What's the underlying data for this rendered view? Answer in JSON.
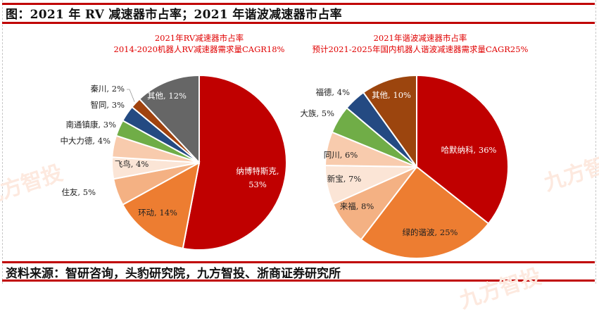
{
  "figure_title": "图：2021 年 RV 减速器市占率；2021 年谐波减速器市占率",
  "source": "资料来源：智研咨询，头豹研究院，九方智投、浙商证券研究所",
  "watermark": "九方智投",
  "chart_data": [
    {
      "type": "pie",
      "title": "2021年RV减速器市占率",
      "subtitle": "2014-2020机器人RV减速器需求量CAGR18%",
      "unit": "%",
      "start": "12 o'clock",
      "direction": "clockwise",
      "slices": [
        {
          "name": "纳博特斯克",
          "value": 53,
          "label": "纳博特斯克,",
          "label2": "53%",
          "color": "#c00000",
          "textColor": "#ffffff"
        },
        {
          "name": "环动",
          "value": 14,
          "label": "环动, 14%",
          "color": "#ed7d31",
          "textColor": "#222222"
        },
        {
          "name": "住友",
          "value": 5,
          "label": "住友, 5%",
          "color": "#f4b183",
          "textColor": "#222222"
        },
        {
          "name": "飞鸟",
          "value": 4,
          "label": "飞鸟, 4%",
          "color": "#fbe5d6",
          "textColor": "#222222"
        },
        {
          "name": "中大力德",
          "value": 4,
          "label": "中大力德, 4%",
          "color": "#f8cbad",
          "textColor": "#222222"
        },
        {
          "name": "南通镇康",
          "value": 3,
          "label": "南通镇康, 3%",
          "color": "#70ad47",
          "textColor": "#222222"
        },
        {
          "name": "智同",
          "value": 3,
          "label": "智同, 3%",
          "color": "#244a82",
          "textColor": "#222222"
        },
        {
          "name": "秦川",
          "value": 2,
          "label": "秦川, 2%",
          "color": "#a0430f",
          "textColor": "#222222"
        },
        {
          "name": "其他",
          "value": 12,
          "label": "其他, 12%",
          "color": "#666666",
          "textColor": "#ffffff"
        }
      ]
    },
    {
      "type": "pie",
      "title": "2021年谐波减速器市占率",
      "subtitle": "预计2021-2025年国内机器人谐波减速器需求量CAGR25%",
      "unit": "%",
      "start": "12 o'clock",
      "direction": "clockwise",
      "slices": [
        {
          "name": "哈默纳科",
          "value": 36,
          "label": "哈默纳科, 36%",
          "color": "#c00000",
          "textColor": "#ffffff"
        },
        {
          "name": "绿的谐波",
          "value": 25,
          "label": "绿的谐波, 25%",
          "color": "#ed7d31",
          "textColor": "#222222"
        },
        {
          "name": "来福",
          "value": 8,
          "label": "来福, 8%",
          "color": "#f4b183",
          "textColor": "#222222"
        },
        {
          "name": "新宝",
          "value": 7,
          "label": "新宝, 7%",
          "color": "#fbe5d6",
          "textColor": "#222222"
        },
        {
          "name": "同川",
          "value": 6,
          "label": "同川, 6%",
          "color": "#f8cbad",
          "textColor": "#222222"
        },
        {
          "name": "大族",
          "value": 5,
          "label": "大族, 5%",
          "color": "#70ad47",
          "textColor": "#222222"
        },
        {
          "name": "福德",
          "value": 4,
          "label": "福德, 4%",
          "color": "#244a82",
          "textColor": "#222222"
        },
        {
          "name": "其他",
          "value": 10,
          "label": "其他, 10%",
          "color": "#9c450e",
          "textColor": "#ffffff"
        }
      ]
    }
  ]
}
